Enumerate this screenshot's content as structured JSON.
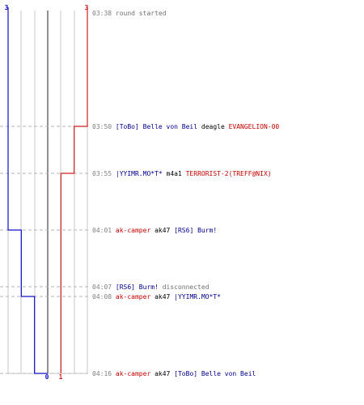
{
  "chart_data": {
    "type": "line",
    "title": "",
    "xlabel": "",
    "ylabel": "",
    "team_colors": {
      "ct": "#1010c0",
      "t": "#cc2020",
      "neutral": "#606060"
    },
    "scale": {
      "max_alive": 3
    },
    "start_labels": {
      "ct": "3",
      "t": "3"
    },
    "end_labels": {
      "ct": "0",
      "t": "1"
    },
    "series": [
      {
        "team": "ct",
        "values": [
          3,
          3,
          3,
          2,
          2,
          1,
          0
        ]
      },
      {
        "team": "t",
        "values": [
          3,
          2,
          1,
          1,
          1,
          1,
          1
        ]
      }
    ],
    "events": [
      {
        "time": "03:38",
        "parts": [
          {
            "text": "round started",
            "color": "gray"
          }
        ]
      },
      {
        "time": "03:50",
        "parts": [
          {
            "text": "[ToBo] Belle von Beil",
            "color": "blue"
          },
          {
            "text": "deagle",
            "color": "black"
          },
          {
            "text": "EVANGELION-00",
            "color": "red"
          }
        ]
      },
      {
        "time": "03:55",
        "parts": [
          {
            "text": "|YYIMR.MO*T*",
            "color": "blue"
          },
          {
            "text": "m4a1",
            "color": "black"
          },
          {
            "text": "TERRORIST-2(TREFF@NIX)",
            "color": "red"
          }
        ]
      },
      {
        "time": "04:01",
        "parts": [
          {
            "text": "ak-camper",
            "color": "red"
          },
          {
            "text": "ak47",
            "color": "black"
          },
          {
            "text": "[RS6] Burm!",
            "color": "blue"
          }
        ]
      },
      {
        "time": "04:07",
        "parts": [
          {
            "text": "[RS6] Burm!",
            "color": "blue"
          },
          {
            "text": "disconnected",
            "color": "gray"
          }
        ]
      },
      {
        "time": "04:08",
        "parts": [
          {
            "text": "ak-camper",
            "color": "red"
          },
          {
            "text": "ak47",
            "color": "black"
          },
          {
            "text": "|YYIMR.MO*T*",
            "color": "blue"
          }
        ]
      },
      {
        "time": "04:16",
        "parts": [
          {
            "text": "ak-camper",
            "color": "red"
          },
          {
            "text": "ak47",
            "color": "black"
          },
          {
            "text": "[ToBo] Belle von Beil",
            "color": "blue"
          }
        ]
      }
    ]
  }
}
